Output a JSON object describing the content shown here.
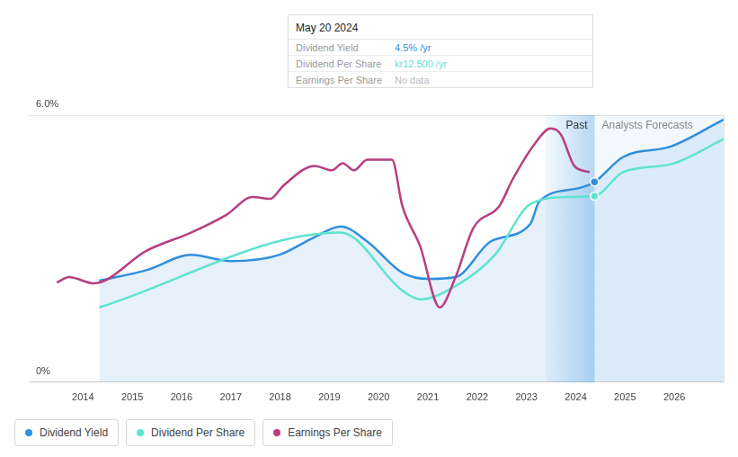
{
  "chart_data": {
    "type": "line",
    "xlim": [
      2012.9,
      2027.0
    ],
    "xticks": [
      2014,
      2015,
      2016,
      2017,
      2018,
      2019,
      2020,
      2021,
      2022,
      2023,
      2024,
      2025,
      2026
    ],
    "ylim": [
      0,
      6
    ],
    "yticks": [
      {
        "value": 0,
        "label": "0%"
      },
      {
        "value": 6,
        "label": "6.0%"
      }
    ],
    "grid": true,
    "legend": "bottom left",
    "annotations": [
      {
        "text": "Past"
      },
      {
        "text": "Analysts Forecasts"
      }
    ],
    "tooltip": {
      "title": "May 20 2024",
      "rows": [
        {
          "label": "Dividend Yield",
          "value": "4.5%",
          "unit": "/yr"
        },
        {
          "label": "Dividend Per Share",
          "value": "kr12.500",
          "unit": "/yr"
        },
        {
          "label": "Earnings Per Share",
          "value": "No data"
        }
      ]
    },
    "series": [
      {
        "name": "Dividend Yield",
        "color": "#2f8fdd",
        "marker": "circle",
        "x": [
          2014.33,
          2015.3,
          2016.19,
          2017.0,
          2017.98,
          2018.7,
          2019.23,
          2019.77,
          2020.48,
          2021.02,
          2021.56,
          2022.27,
          2023.08,
          2023.26,
          2024.06,
          2024.38,
          2024.96,
          2025.94,
          2027.0
        ],
        "values": [
          2.28,
          2.52,
          2.86,
          2.72,
          2.86,
          3.26,
          3.5,
          3.16,
          2.46,
          2.32,
          2.36,
          3.16,
          3.56,
          4.06,
          4.36,
          4.5,
          5.06,
          5.3,
          5.9
        ]
      },
      {
        "name": "Dividend Per Share",
        "color": "#5fe3d0",
        "marker": "circle",
        "x": [
          2014.33,
          2019.23,
          2020.48,
          2020.84,
          2021.56,
          2022.36,
          2023.08,
          2023.88,
          2024.38,
          2024.96,
          2025.94,
          2027.0
        ],
        "values": [
          1.68,
          3.36,
          2.06,
          1.86,
          2.16,
          2.86,
          4.0,
          4.16,
          4.18,
          4.72,
          4.9,
          5.46
        ]
      },
      {
        "name": "Earnings Per Share",
        "color": "#b83e80",
        "x": [
          2013.47,
          2013.72,
          2014.22,
          2015.3,
          2016.19,
          2016.91,
          2017.44,
          2017.8,
          2018.07,
          2018.7,
          2019.05,
          2019.27,
          2019.5,
          2019.77,
          2020.27,
          2020.48,
          2020.84,
          2021.24,
          2021.56,
          2021.92,
          2022.45,
          2022.72,
          2023.17,
          2023.49,
          2023.7,
          2023.97,
          2024.28
        ],
        "values": [
          2.24,
          2.36,
          2.22,
          2.96,
          3.36,
          3.76,
          4.16,
          4.12,
          4.42,
          4.86,
          4.76,
          4.92,
          4.76,
          5.0,
          5.0,
          3.96,
          3.06,
          1.68,
          2.36,
          3.46,
          3.96,
          4.56,
          5.36,
          5.7,
          5.56,
          4.86,
          4.72
        ]
      }
    ]
  }
}
